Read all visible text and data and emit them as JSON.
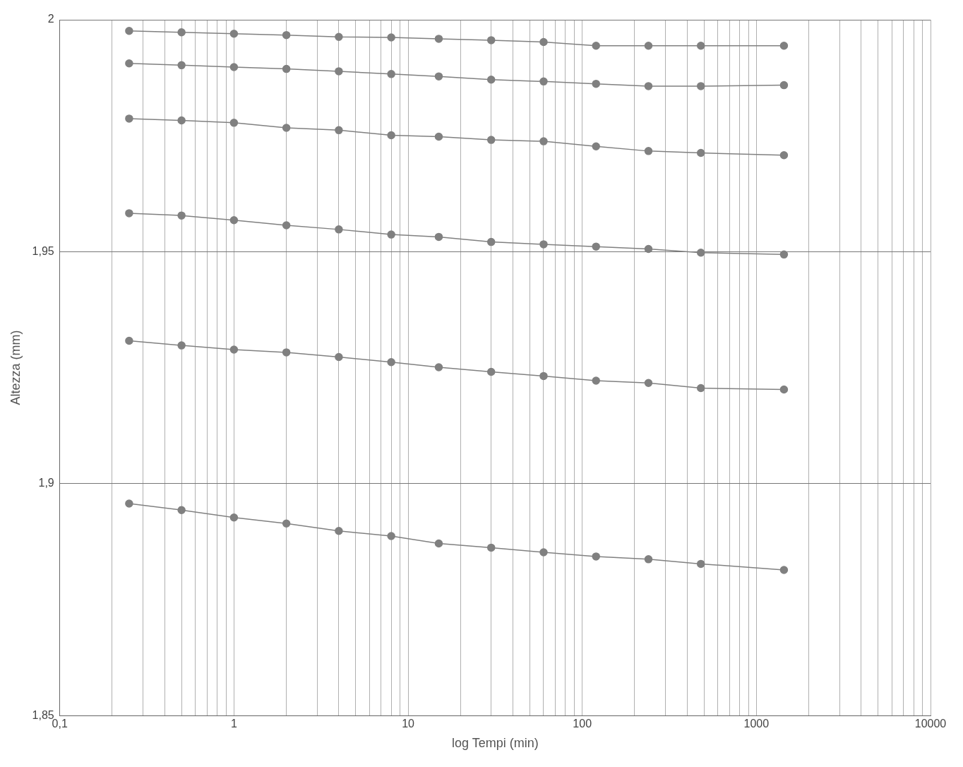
{
  "chart_data": {
    "type": "line",
    "xlabel": "log Tempi (min)",
    "ylabel": "Altezza (mm)",
    "log": "x",
    "grid": true,
    "legend": false,
    "marker": "circle",
    "line_style": "solid",
    "x": [
      0.25,
      0.5,
      1,
      2,
      4,
      8,
      15,
      30,
      60,
      120,
      240,
      480,
      1440
    ],
    "xlim": [
      0.1,
      10000
    ],
    "xticks": [
      {
        "value": 0.1,
        "label": "0,1"
      },
      {
        "value": 0.2,
        "label": null
      },
      {
        "value": 0.3,
        "label": null
      },
      {
        "value": 0.4,
        "label": null
      },
      {
        "value": 0.5,
        "label": null
      },
      {
        "value": 0.6,
        "label": null
      },
      {
        "value": 0.7,
        "label": null
      },
      {
        "value": 0.8,
        "label": null
      },
      {
        "value": 0.9,
        "label": null
      },
      {
        "value": 1,
        "label": "1"
      },
      {
        "value": 2,
        "label": null
      },
      {
        "value": 3,
        "label": null
      },
      {
        "value": 4,
        "label": null
      },
      {
        "value": 5,
        "label": null
      },
      {
        "value": 6,
        "label": null
      },
      {
        "value": 7,
        "label": null
      },
      {
        "value": 8,
        "label": null
      },
      {
        "value": 9,
        "label": null
      },
      {
        "value": 10,
        "label": "10"
      },
      {
        "value": 20,
        "label": null
      },
      {
        "value": 30,
        "label": null
      },
      {
        "value": 40,
        "label": null
      },
      {
        "value": 50,
        "label": null
      },
      {
        "value": 60,
        "label": null
      },
      {
        "value": 70,
        "label": null
      },
      {
        "value": 80,
        "label": null
      },
      {
        "value": 90,
        "label": null
      },
      {
        "value": 100,
        "label": "100"
      },
      {
        "value": 200,
        "label": null
      },
      {
        "value": 300,
        "label": null
      },
      {
        "value": 400,
        "label": null
      },
      {
        "value": 500,
        "label": null
      },
      {
        "value": 600,
        "label": null
      },
      {
        "value": 700,
        "label": null
      },
      {
        "value": 800,
        "label": null
      },
      {
        "value": 900,
        "label": null
      },
      {
        "value": 1000,
        "label": "1000"
      },
      {
        "value": 2000,
        "label": null
      },
      {
        "value": 3000,
        "label": null
      },
      {
        "value": 4000,
        "label": null
      },
      {
        "value": 5000,
        "label": null
      },
      {
        "value": 6000,
        "label": null
      },
      {
        "value": 7000,
        "label": null
      },
      {
        "value": 8000,
        "label": null
      },
      {
        "value": 9000,
        "label": null
      },
      {
        "value": 10000,
        "label": "10000"
      }
    ],
    "ylim": [
      1.85,
      2
    ],
    "yticks": [
      {
        "value": 1.85,
        "label": "1,85"
      },
      {
        "value": 1.9,
        "label": "1,9"
      },
      {
        "value": 1.95,
        "label": "1,95"
      },
      {
        "value": 2,
        "label": "2"
      }
    ],
    "series": [
      {
        "color": "#808080",
        "values": [
          1.9976,
          1.9973,
          1.997,
          1.9967,
          1.9963,
          1.9962,
          1.9959,
          1.9956,
          1.9952,
          1.9944,
          1.9944,
          1.9944,
          1.9944
        ]
      },
      {
        "color": "#808080",
        "values": [
          1.9906,
          1.9902,
          1.9898,
          1.9894,
          1.9889,
          1.9883,
          1.9878,
          1.9871,
          1.9867,
          1.9862,
          1.9857,
          1.9857,
          1.9859
        ]
      },
      {
        "color": "#808080",
        "values": [
          1.9787,
          1.9783,
          1.9778,
          1.9767,
          1.9762,
          1.9751,
          1.9748,
          1.9741,
          1.9738,
          1.9727,
          1.9717,
          1.9713,
          1.9708
        ]
      },
      {
        "color": "#808080",
        "values": [
          1.9583,
          1.9578,
          1.9568,
          1.9557,
          1.9548,
          1.9537,
          1.9532,
          1.9521,
          1.9516,
          1.9511,
          1.9506,
          1.9498,
          1.9494
        ]
      },
      {
        "color": "#808080",
        "values": [
          1.9308,
          1.9298,
          1.9289,
          1.9283,
          1.9273,
          1.9262,
          1.9251,
          1.9241,
          1.9232,
          1.9222,
          1.9217,
          1.9206,
          1.9203
        ]
      },
      {
        "color": "#808080",
        "values": [
          1.8957,
          1.8943,
          1.8927,
          1.8914,
          1.8898,
          1.8887,
          1.8871,
          1.8862,
          1.8852,
          1.8843,
          1.8837,
          1.8827,
          1.8814
        ]
      }
    ]
  }
}
